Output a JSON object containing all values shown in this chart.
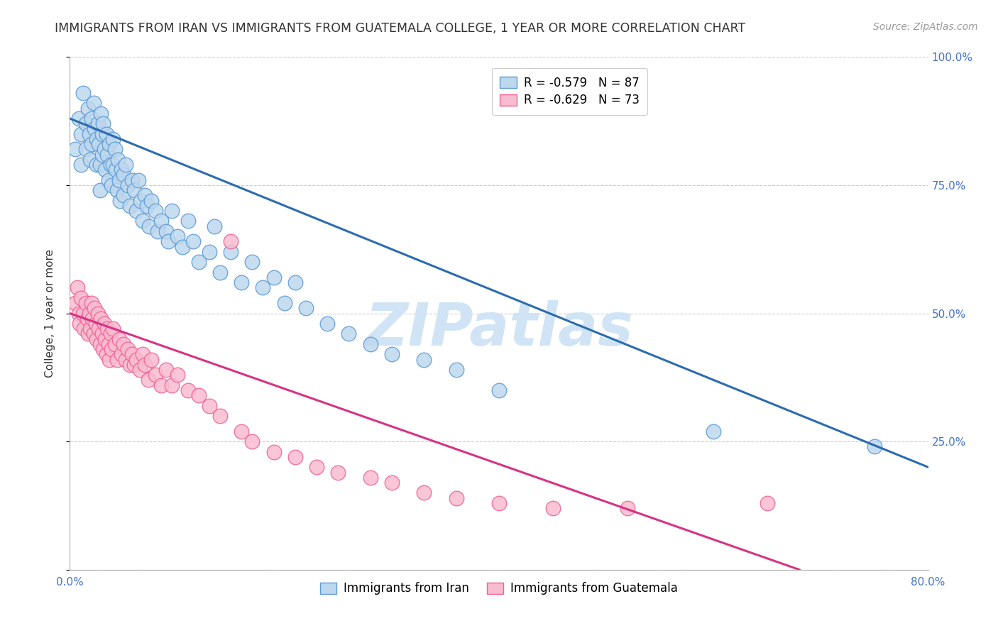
{
  "title": "IMMIGRANTS FROM IRAN VS IMMIGRANTS FROM GUATEMALA COLLEGE, 1 YEAR OR MORE CORRELATION CHART",
  "source": "Source: ZipAtlas.com",
  "ylabel": "College, 1 year or more",
  "xmin": 0.0,
  "xmax": 0.8,
  "ymin": 0.0,
  "ymax": 1.0,
  "yticks": [
    0.0,
    0.25,
    0.5,
    0.75,
    1.0
  ],
  "ytick_labels_right": [
    "",
    "25.0%",
    "50.0%",
    "75.0%",
    "100.0%"
  ],
  "xticks": [
    0.0,
    0.1,
    0.2,
    0.3,
    0.4,
    0.5,
    0.6,
    0.7,
    0.8
  ],
  "iran_color_edge": "#5b9bd5",
  "iran_color_fill": "#bdd7ee",
  "guatemala_color_edge": "#f06292",
  "guatemala_color_fill": "#f8bbd0",
  "iran_R": -0.579,
  "iran_N": 87,
  "guatemala_R": -0.629,
  "guatemala_N": 73,
  "watermark_text": "ZIPatlas",
  "watermark_color": "#d0e4f5",
  "iran_line_x0": 0.0,
  "iran_line_y0": 0.88,
  "iran_line_x1": 0.8,
  "iran_line_y1": 0.2,
  "guatemala_line_x0": 0.0,
  "guatemala_line_y0": 0.5,
  "guatemala_line_x1": 0.68,
  "guatemala_line_y1": 0.0,
  "iran_scatter_x": [
    0.005,
    0.008,
    0.01,
    0.01,
    0.012,
    0.015,
    0.015,
    0.017,
    0.018,
    0.019,
    0.02,
    0.02,
    0.022,
    0.023,
    0.025,
    0.025,
    0.026,
    0.027,
    0.028,
    0.028,
    0.029,
    0.03,
    0.03,
    0.031,
    0.032,
    0.033,
    0.034,
    0.035,
    0.036,
    0.037,
    0.038,
    0.039,
    0.04,
    0.04,
    0.042,
    0.043,
    0.044,
    0.045,
    0.046,
    0.047,
    0.048,
    0.05,
    0.05,
    0.052,
    0.054,
    0.056,
    0.058,
    0.06,
    0.062,
    0.064,
    0.066,
    0.068,
    0.07,
    0.072,
    0.074,
    0.076,
    0.08,
    0.082,
    0.085,
    0.09,
    0.092,
    0.095,
    0.1,
    0.105,
    0.11,
    0.115,
    0.12,
    0.13,
    0.135,
    0.14,
    0.15,
    0.16,
    0.17,
    0.18,
    0.19,
    0.2,
    0.21,
    0.22,
    0.24,
    0.26,
    0.28,
    0.3,
    0.33,
    0.36,
    0.4,
    0.6,
    0.75
  ],
  "iran_scatter_y": [
    0.82,
    0.88,
    0.85,
    0.79,
    0.93,
    0.87,
    0.82,
    0.9,
    0.85,
    0.8,
    0.88,
    0.83,
    0.91,
    0.86,
    0.84,
    0.79,
    0.87,
    0.83,
    0.79,
    0.74,
    0.89,
    0.85,
    0.81,
    0.87,
    0.82,
    0.78,
    0.85,
    0.81,
    0.76,
    0.83,
    0.79,
    0.75,
    0.84,
    0.79,
    0.82,
    0.78,
    0.74,
    0.8,
    0.76,
    0.72,
    0.78,
    0.77,
    0.73,
    0.79,
    0.75,
    0.71,
    0.76,
    0.74,
    0.7,
    0.76,
    0.72,
    0.68,
    0.73,
    0.71,
    0.67,
    0.72,
    0.7,
    0.66,
    0.68,
    0.66,
    0.64,
    0.7,
    0.65,
    0.63,
    0.68,
    0.64,
    0.6,
    0.62,
    0.67,
    0.58,
    0.62,
    0.56,
    0.6,
    0.55,
    0.57,
    0.52,
    0.56,
    0.51,
    0.48,
    0.46,
    0.44,
    0.42,
    0.41,
    0.39,
    0.35,
    0.27,
    0.24
  ],
  "guatemala_scatter_x": [
    0.005,
    0.007,
    0.008,
    0.009,
    0.01,
    0.012,
    0.013,
    0.015,
    0.016,
    0.017,
    0.018,
    0.019,
    0.02,
    0.021,
    0.022,
    0.023,
    0.024,
    0.025,
    0.026,
    0.027,
    0.028,
    0.029,
    0.03,
    0.031,
    0.032,
    0.033,
    0.034,
    0.035,
    0.036,
    0.037,
    0.038,
    0.039,
    0.04,
    0.042,
    0.044,
    0.046,
    0.048,
    0.05,
    0.052,
    0.054,
    0.056,
    0.058,
    0.06,
    0.062,
    0.065,
    0.068,
    0.07,
    0.073,
    0.076,
    0.08,
    0.085,
    0.09,
    0.095,
    0.1,
    0.11,
    0.12,
    0.13,
    0.14,
    0.15,
    0.16,
    0.17,
    0.19,
    0.21,
    0.23,
    0.25,
    0.28,
    0.3,
    0.33,
    0.36,
    0.4,
    0.45,
    0.52,
    0.65
  ],
  "guatemala_scatter_y": [
    0.52,
    0.55,
    0.5,
    0.48,
    0.53,
    0.5,
    0.47,
    0.52,
    0.49,
    0.46,
    0.5,
    0.47,
    0.52,
    0.49,
    0.46,
    0.51,
    0.48,
    0.45,
    0.5,
    0.47,
    0.44,
    0.49,
    0.46,
    0.43,
    0.48,
    0.45,
    0.42,
    0.47,
    0.44,
    0.41,
    0.46,
    0.43,
    0.47,
    0.44,
    0.41,
    0.45,
    0.42,
    0.44,
    0.41,
    0.43,
    0.4,
    0.42,
    0.4,
    0.41,
    0.39,
    0.42,
    0.4,
    0.37,
    0.41,
    0.38,
    0.36,
    0.39,
    0.36,
    0.38,
    0.35,
    0.34,
    0.32,
    0.3,
    0.64,
    0.27,
    0.25,
    0.23,
    0.22,
    0.2,
    0.19,
    0.18,
    0.17,
    0.15,
    0.14,
    0.13,
    0.12,
    0.12,
    0.13
  ],
  "title_fontsize": 12.5,
  "source_fontsize": 10,
  "axis_label_fontsize": 11,
  "tick_fontsize": 11,
  "legend_fontsize": 12,
  "watermark_fontsize": 60
}
